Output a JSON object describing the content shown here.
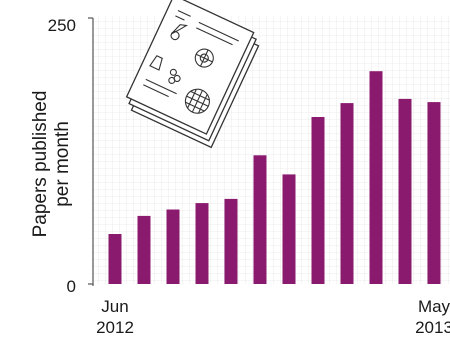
{
  "chart_data": {
    "type": "bar",
    "ylabel_lines": [
      "Papers published",
      "per month"
    ],
    "ylim": [
      0,
      250
    ],
    "y_ticks": [
      "250",
      "0"
    ],
    "x_tick_labels": [
      {
        "month": "Jun",
        "year": "2012",
        "index": 0
      },
      {
        "month": "May",
        "year": "2013",
        "index": 11
      }
    ],
    "values": [
      47,
      64,
      70,
      76,
      80,
      121,
      103,
      157,
      170,
      200,
      174,
      171
    ],
    "bar_color": "#8a1a6e",
    "grid": true,
    "legend": "none"
  },
  "illustration": {
    "name": "stacked-paper-sheets-icon"
  }
}
